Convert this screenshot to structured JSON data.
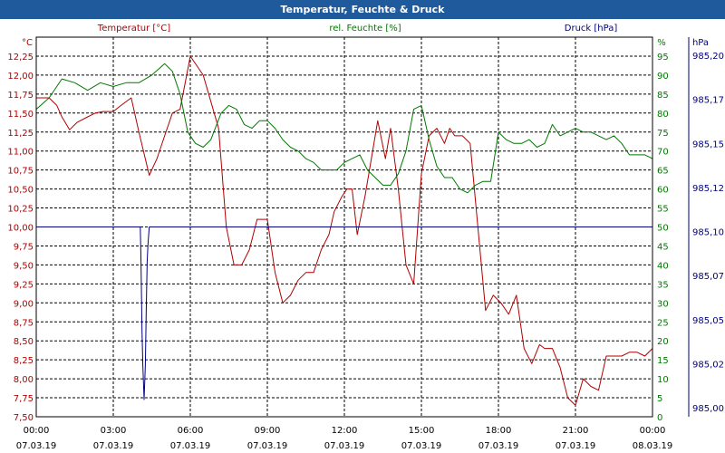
{
  "window": {
    "title": "Temperatur, Feuchte & Druck"
  },
  "chart_data": {
    "type": "line",
    "title": "Temperatur, Feuchte & Druck",
    "xlabel": "",
    "x_ticks": [
      {
        "time": "00:00",
        "date": "07.03.19"
      },
      {
        "time": "03:00",
        "date": "07.03.19"
      },
      {
        "time": "06:00",
        "date": "07.03.19"
      },
      {
        "time": "09:00",
        "date": "07.03.19"
      },
      {
        "time": "12:00",
        "date": "07.03.19"
      },
      {
        "time": "15:00",
        "date": "07.03.19"
      },
      {
        "time": "18:00",
        "date": "07.03.19"
      },
      {
        "time": "21:00",
        "date": "07.03.19"
      },
      {
        "time": "00:00",
        "date": "08.03.19"
      }
    ],
    "xlim": [
      0,
      24
    ],
    "grid": true,
    "axes": {
      "temp": {
        "label": "Temperatur [°C]",
        "unit": "°C",
        "ylim": [
          7.5,
          12.5
        ],
        "ticks": [
          "7,50",
          "7,75",
          "8,00",
          "8,25",
          "8,50",
          "8,75",
          "9,00",
          "9,25",
          "9,50",
          "9,75",
          "10,00",
          "10,25",
          "10,50",
          "10,75",
          "11,00",
          "11,25",
          "11,50",
          "11,75",
          "12,00",
          "12,25"
        ]
      },
      "hum": {
        "label": "rel. Feuchte [%]",
        "unit": "%",
        "ylim": [
          0,
          100
        ],
        "ticks": [
          "0",
          "5",
          "10",
          "15",
          "20",
          "25",
          "30",
          "35",
          "40",
          "45",
          "50",
          "55",
          "60",
          "65",
          "70",
          "75",
          "80",
          "85",
          "90",
          "95"
        ]
      },
      "press": {
        "label": "Druck [hPa]",
        "unit": "hPa",
        "ylim": [
          984.99,
          985.21
        ],
        "ticks": [
          "985,00",
          "985,02",
          "985,05",
          "985,07",
          "985,10",
          "985,12",
          "985,15",
          "985,17",
          "985,20"
        ]
      }
    },
    "colors": {
      "temp": "#b00000",
      "hum": "#007800",
      "press": "#000080"
    },
    "series": [
      {
        "name": "Temperatur [°C]",
        "axis": "temp",
        "x": [
          0,
          0.5,
          0.8,
          1.0,
          1.3,
          1.6,
          2.0,
          2.3,
          2.6,
          3.0,
          3.3,
          3.7,
          4.0,
          4.4,
          4.7,
          5.0,
          5.3,
          5.6,
          6.0,
          6.5,
          6.8,
          7.1,
          7.4,
          7.7,
          8.0,
          8.3,
          8.6,
          9.0,
          9.3,
          9.6,
          9.9,
          10.2,
          10.5,
          10.8,
          11.1,
          11.4,
          11.6,
          11.9,
          12.1,
          12.3,
          12.5,
          12.8,
          13.1,
          13.3,
          13.6,
          13.8,
          14.1,
          14.4,
          14.7,
          15.0,
          15.3,
          15.6,
          15.9,
          16.1,
          16.3,
          16.6,
          16.9,
          17.2,
          17.5,
          17.8,
          18.1,
          18.4,
          18.7,
          19.0,
          19.3,
          19.6,
          19.8,
          20.1,
          20.4,
          20.7,
          21.0,
          21.3,
          21.6,
          21.9,
          22.2,
          22.5,
          22.8,
          23.1,
          23.4,
          23.7,
          24.0
        ],
        "values": [
          11.7,
          11.7,
          11.6,
          11.45,
          11.28,
          11.38,
          11.45,
          11.5,
          11.52,
          11.52,
          11.6,
          11.7,
          11.25,
          10.68,
          10.9,
          11.2,
          11.5,
          11.55,
          12.25,
          12.0,
          11.65,
          11.3,
          10.0,
          9.5,
          9.5,
          9.7,
          10.1,
          10.1,
          9.4,
          9.0,
          9.1,
          9.3,
          9.4,
          9.4,
          9.7,
          9.9,
          10.2,
          10.4,
          10.5,
          10.5,
          9.9,
          10.4,
          11.0,
          11.4,
          10.9,
          11.3,
          10.5,
          9.5,
          9.25,
          10.7,
          11.2,
          11.3,
          11.1,
          11.3,
          11.2,
          11.2,
          11.1,
          10.0,
          8.9,
          9.1,
          9.0,
          8.85,
          9.1,
          8.4,
          8.2,
          8.45,
          8.4,
          8.4,
          8.15,
          7.75,
          7.65,
          8.0,
          7.9,
          7.85,
          8.3,
          8.3,
          8.3,
          8.35,
          8.35,
          8.3,
          8.4
        ]
      },
      {
        "name": "rel. Feuchte [%]",
        "axis": "hum",
        "x": [
          0,
          0.5,
          1.0,
          1.5,
          2.0,
          2.5,
          3.0,
          3.5,
          4.0,
          4.5,
          5.0,
          5.3,
          5.6,
          5.9,
          6.2,
          6.5,
          6.8,
          7.2,
          7.5,
          7.8,
          8.1,
          8.4,
          8.7,
          9.0,
          9.3,
          9.6,
          9.9,
          10.2,
          10.5,
          10.8,
          11.1,
          11.4,
          11.7,
          12.0,
          12.3,
          12.6,
          12.9,
          13.2,
          13.5,
          13.8,
          14.1,
          14.4,
          14.7,
          15.0,
          15.3,
          15.6,
          15.9,
          16.2,
          16.5,
          16.8,
          17.1,
          17.4,
          17.7,
          18.0,
          18.3,
          18.6,
          18.9,
          19.2,
          19.5,
          19.8,
          20.1,
          20.4,
          20.7,
          21.0,
          21.3,
          21.6,
          21.9,
          22.2,
          22.5,
          22.8,
          23.1,
          23.4,
          23.7,
          24.0
        ],
        "values": [
          81,
          84,
          89,
          88,
          86,
          88,
          87,
          88,
          88,
          90,
          93,
          91,
          85,
          75,
          72,
          71,
          73,
          80,
          82,
          81,
          77,
          76,
          78,
          78,
          76,
          73,
          71,
          70,
          68,
          67,
          65,
          65,
          65,
          67,
          68,
          69,
          65,
          63,
          61,
          61,
          64,
          70,
          81,
          82,
          73,
          66,
          63,
          63,
          60,
          59,
          61,
          62,
          62,
          75,
          73,
          72,
          72,
          73,
          71,
          72,
          77,
          74,
          75,
          76,
          75,
          75,
          74,
          73,
          74,
          72,
          69,
          69,
          69,
          68
        ]
      },
      {
        "name": "Druck [hPa]",
        "axis": "press",
        "x": [
          0,
          4.05,
          4.08,
          4.12,
          4.15,
          4.2,
          4.25,
          4.28,
          4.32,
          4.35,
          4.4,
          24.0
        ],
        "values": [
          985.1,
          985.1,
          985.08,
          985.04,
          985.02,
          985.0,
          985.02,
          985.05,
          985.08,
          985.09,
          985.1,
          985.1
        ]
      }
    ]
  }
}
